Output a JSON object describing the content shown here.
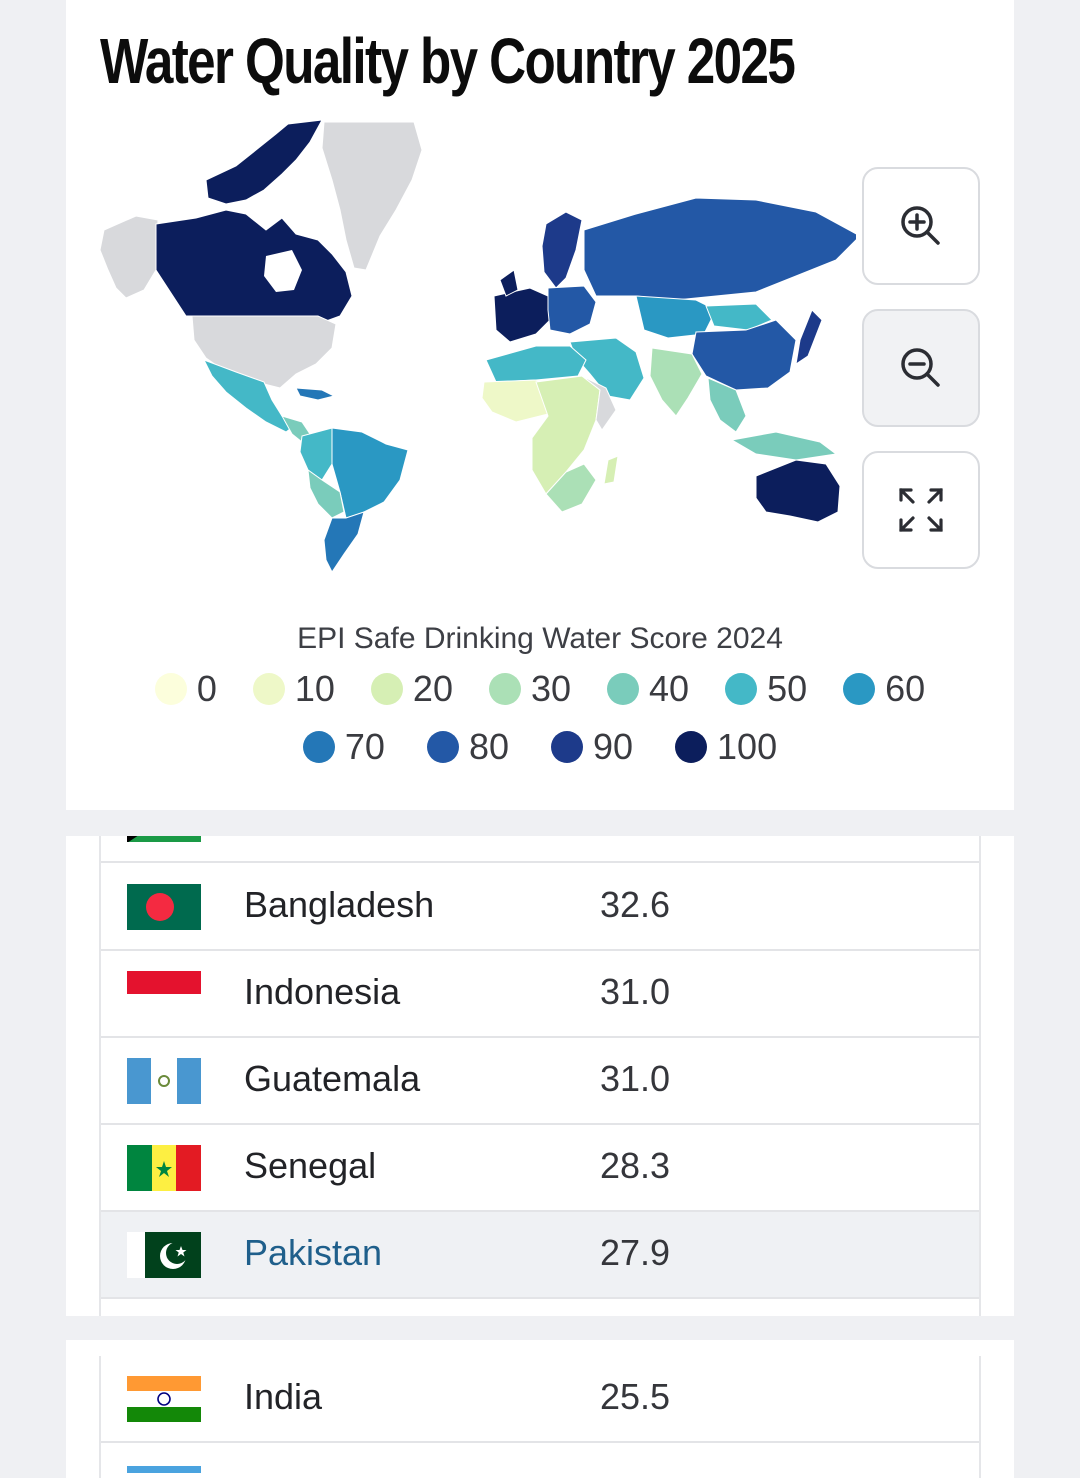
{
  "title": "Water Quality by Country 2025",
  "controls": {
    "zoom_in_icon": "zoom-in-icon",
    "zoom_out_icon": "zoom-out-icon",
    "fullscreen_icon": "fullscreen-icon"
  },
  "legend": {
    "title": "EPI Safe Drinking Water Score 2024",
    "stops": [
      {
        "label": "0",
        "color": "#fcfedc"
      },
      {
        "label": "10",
        "color": "#eef8c8"
      },
      {
        "label": "20",
        "color": "#d6efb4"
      },
      {
        "label": "30",
        "color": "#abe0b6"
      },
      {
        "label": "40",
        "color": "#7accbb"
      },
      {
        "label": "50",
        "color": "#44b8c7"
      },
      {
        "label": "60",
        "color": "#2a98c3"
      },
      {
        "label": "70",
        "color": "#2477b7"
      },
      {
        "label": "80",
        "color": "#2358a6"
      },
      {
        "label": "90",
        "color": "#1d3a8a"
      },
      {
        "label": "100",
        "color": "#0c1e5c"
      }
    ]
  },
  "map_colors": {
    "no_data": "#d8d9dc",
    "border": "#ffffff"
  },
  "table": {
    "rows": [
      {
        "country": "Bangladesh",
        "score": "32.6",
        "flag": "bangladesh-flag"
      },
      {
        "country": "Indonesia",
        "score": "31.0",
        "flag": "indonesia-flag"
      },
      {
        "country": "Guatemala",
        "score": "31.0",
        "flag": "guatemala-flag"
      },
      {
        "country": "Senegal",
        "score": "28.3",
        "flag": "senegal-flag"
      },
      {
        "country": "Pakistan",
        "score": "27.9",
        "flag": "pakistan-flag",
        "highlighted": true
      }
    ],
    "rows_2": [
      {
        "country": "India",
        "score": "25.5",
        "flag": "india-flag"
      }
    ]
  }
}
